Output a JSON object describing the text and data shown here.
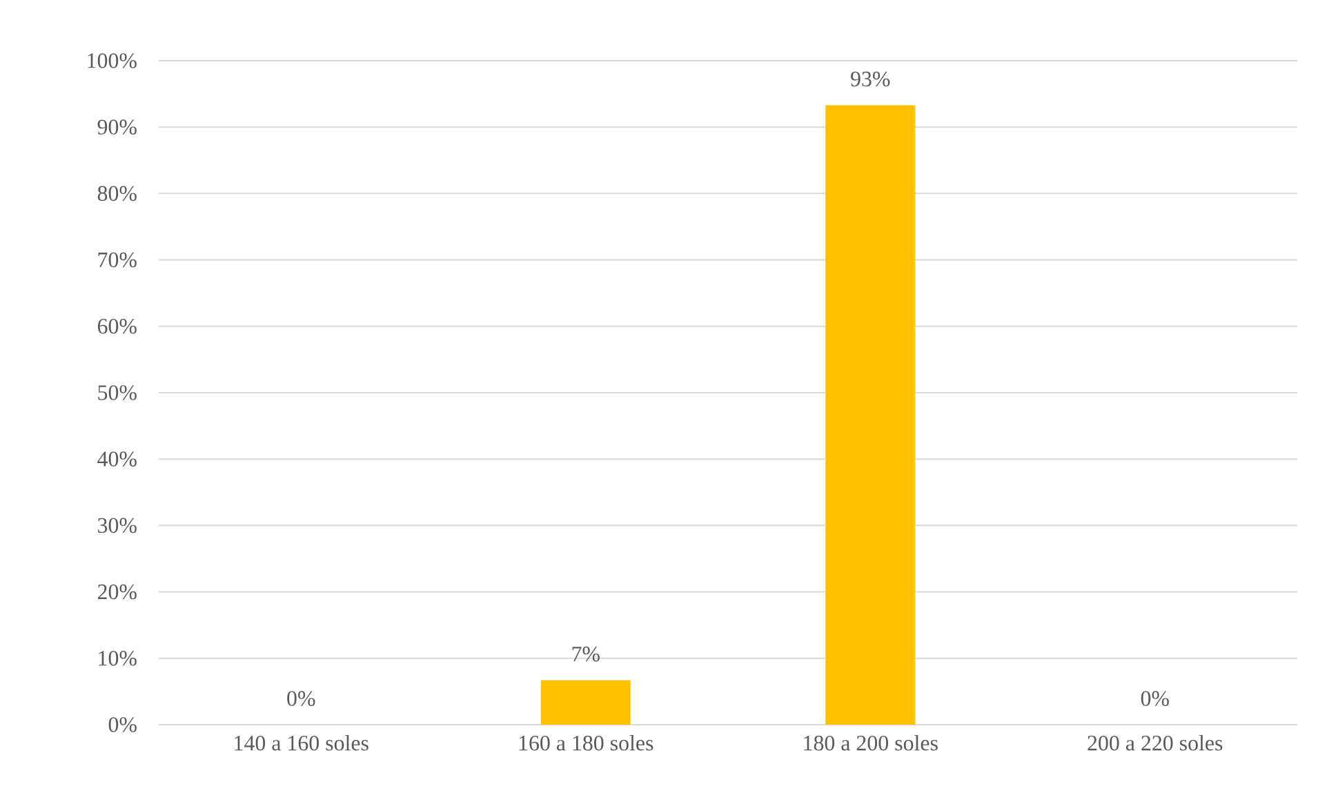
{
  "chart_data": {
    "type": "bar",
    "categories": [
      "140 a 160 soles",
      "160 a 180 soles",
      "180 a 200 soles",
      "200 a 220 soles"
    ],
    "values": [
      0,
      6.7,
      93.3,
      0
    ],
    "color": "#ffc000",
    "value_labels": [
      "0%",
      "7%",
      "93%",
      "0%"
    ],
    "ylim": [
      0,
      100
    ],
    "yticks": [
      {
        "value": 0,
        "label": "0%"
      },
      {
        "value": 10,
        "label": "10%"
      },
      {
        "value": 20,
        "label": "20%"
      },
      {
        "value": 30,
        "label": "30%"
      },
      {
        "value": 40,
        "label": "40%"
      },
      {
        "value": 50,
        "label": "50%"
      },
      {
        "value": 60,
        "label": "60%"
      },
      {
        "value": 70,
        "label": "70%"
      },
      {
        "value": 80,
        "label": "80%"
      },
      {
        "value": 90,
        "label": "90%"
      },
      {
        "value": 100,
        "label": "100%"
      }
    ],
    "grid": "y"
  }
}
